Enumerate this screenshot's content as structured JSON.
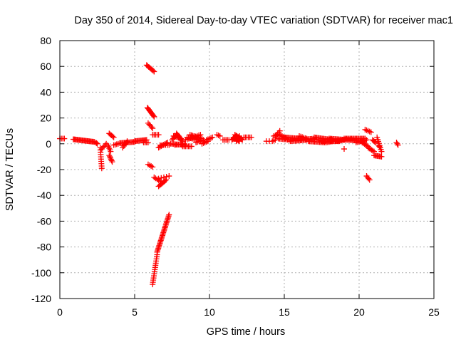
{
  "chart_data": {
    "type": "scatter",
    "title": "Day 350 of 2014, Sidereal Day-to-day VTEC variation (SDTVAR) for receiver mac1",
    "xlabel": "GPS time / hours",
    "ylabel": "SDTVAR / TECUs",
    "xlim": [
      0,
      25
    ],
    "ylim": [
      -120,
      80
    ],
    "xticks": [
      0,
      5,
      10,
      15,
      20,
      25
    ],
    "yticks": [
      -120,
      -100,
      -80,
      -60,
      -40,
      -20,
      0,
      20,
      40,
      60,
      80
    ],
    "grid": true,
    "marker": "+",
    "marker_color": "#ff0000",
    "series": [
      {
        "name": "SDTVAR",
        "segments": [
          {
            "from": [
              0.0,
              4
            ],
            "to": [
              0.3,
              4
            ],
            "n": 4
          },
          {
            "from": [
              0.9,
              3.5
            ],
            "to": [
              2.3,
              1.5
            ],
            "n": 22
          },
          {
            "from": [
              2.4,
              1
            ],
            "to": [
              2.5,
              0
            ],
            "n": 3
          },
          {
            "from": [
              2.7,
              -3
            ],
            "to": [
              2.8,
              -19
            ],
            "n": 10
          },
          {
            "from": [
              2.8,
              -4
            ],
            "to": [
              3.1,
              0
            ],
            "n": 5
          },
          {
            "from": [
              3.2,
              -1
            ],
            "to": [
              3.4,
              -6
            ],
            "n": 5
          },
          {
            "from": [
              3.3,
              -9
            ],
            "to": [
              3.5,
              -14
            ],
            "n": 6
          },
          {
            "from": [
              3.3,
              8
            ],
            "to": [
              3.6,
              5
            ],
            "n": 5
          },
          {
            "from": [
              3.6,
              -1
            ],
            "to": [
              3.9,
              0
            ],
            "n": 4
          },
          {
            "from": [
              4.0,
              0.5
            ],
            "to": [
              5.0,
              1.5
            ],
            "n": 14
          },
          {
            "from": [
              4.2,
              -3
            ],
            "to": [
              4.5,
              2
            ],
            "n": 5
          },
          {
            "from": [
              5.0,
              2
            ],
            "to": [
              5.8,
              3
            ],
            "n": 12
          },
          {
            "from": [
              5.6,
              1
            ],
            "to": [
              5.9,
              1
            ],
            "n": 4
          },
          {
            "from": [
              5.8,
              61
            ],
            "to": [
              6.3,
              56
            ],
            "n": 8
          },
          {
            "from": [
              5.85,
              28
            ],
            "to": [
              6.3,
              21
            ],
            "n": 10
          },
          {
            "from": [
              5.9,
              16
            ],
            "to": [
              6.2,
              12
            ],
            "n": 5
          },
          {
            "from": [
              5.9,
              -16
            ],
            "to": [
              6.2,
              -18
            ],
            "n": 4
          },
          {
            "from": [
              6.2,
              7
            ],
            "to": [
              6.6,
              7
            ],
            "n": 5
          },
          {
            "from": [
              6.3,
              -26
            ],
            "to": [
              6.7,
              -29
            ],
            "n": 5
          },
          {
            "from": [
              6.2,
              -109
            ],
            "to": [
              6.5,
              -86
            ],
            "n": 15
          },
          {
            "from": [
              6.5,
              -84
            ],
            "to": [
              7.3,
              -55
            ],
            "n": 30
          },
          {
            "from": [
              6.6,
              -27
            ],
            "to": [
              7.3,
              -25
            ],
            "n": 5
          },
          {
            "from": [
              6.6,
              -33
            ],
            "to": [
              7.1,
              -28
            ],
            "n": 8
          },
          {
            "from": [
              6.7,
              -1
            ],
            "to": [
              7.3,
              -1
            ],
            "n": 6
          },
          {
            "from": [
              6.6,
              -3
            ],
            "to": [
              7.2,
              1
            ],
            "n": 8
          },
          {
            "from": [
              7.4,
              0
            ],
            "to": [
              8.4,
              -1
            ],
            "n": 12
          },
          {
            "from": [
              7.5,
              3
            ],
            "to": [
              7.8,
              7
            ],
            "n": 5
          },
          {
            "from": [
              7.6,
              6
            ],
            "to": [
              8.1,
              4
            ],
            "n": 7
          },
          {
            "from": [
              7.7,
              -1
            ],
            "to": [
              8.3,
              0
            ],
            "n": 6
          },
          {
            "from": [
              7.8,
              8
            ],
            "to": [
              8.2,
              2
            ],
            "n": 8
          },
          {
            "from": [
              8.2,
              -2
            ],
            "to": [
              8.8,
              -2
            ],
            "n": 7
          },
          {
            "from": [
              8.4,
              3
            ],
            "to": [
              9.4,
              7
            ],
            "n": 10
          },
          {
            "from": [
              8.5,
              5
            ],
            "to": [
              9.6,
              2
            ],
            "n": 12
          },
          {
            "from": [
              8.7,
              7
            ],
            "to": [
              9.5,
              4
            ],
            "n": 10
          },
          {
            "from": [
              9.1,
              1
            ],
            "to": [
              9.6,
              3
            ],
            "n": 6
          },
          {
            "from": [
              9.5,
              0
            ],
            "to": [
              9.9,
              2
            ],
            "n": 5
          },
          {
            "from": [
              9.8,
              3
            ],
            "to": [
              10.2,
              5
            ],
            "n": 5
          },
          {
            "from": [
              10.5,
              7
            ],
            "to": [
              10.7,
              6
            ],
            "n": 3
          },
          {
            "from": [
              10.9,
              3
            ],
            "to": [
              11.3,
              3
            ],
            "n": 5
          },
          {
            "from": [
              11.5,
              3
            ],
            "to": [
              11.8,
              6
            ],
            "n": 6
          },
          {
            "from": [
              11.6,
              5
            ],
            "to": [
              12.0,
              2
            ],
            "n": 7
          },
          {
            "from": [
              11.7,
              7
            ],
            "to": [
              12.2,
              3
            ],
            "n": 8
          },
          {
            "from": [
              11.8,
              2
            ],
            "to": [
              12.0,
              6
            ],
            "n": 5
          },
          {
            "from": [
              12.3,
              5
            ],
            "to": [
              12.8,
              5
            ],
            "n": 6
          },
          {
            "from": [
              13.8,
              2
            ],
            "to": [
              14.0,
              2
            ],
            "n": 2
          },
          {
            "from": [
              14.2,
              2
            ],
            "to": [
              14.4,
              3
            ],
            "n": 3
          },
          {
            "from": [
              14.3,
              6
            ],
            "to": [
              14.5,
              7
            ],
            "n": 3
          },
          {
            "from": [
              14.4,
              5
            ],
            "to": [
              14.7,
              10
            ],
            "n": 5
          },
          {
            "from": [
              14.6,
              4
            ],
            "to": [
              15.4,
              3
            ],
            "n": 10
          },
          {
            "from": [
              14.7,
              7
            ],
            "to": [
              15.1,
              4
            ],
            "n": 6
          },
          {
            "from": [
              15.0,
              5
            ],
            "to": [
              16.0,
              4
            ],
            "n": 14
          },
          {
            "from": [
              15.4,
              2
            ],
            "to": [
              16.5,
              3
            ],
            "n": 14
          },
          {
            "from": [
              15.9,
              3
            ],
            "to": [
              17.0,
              4
            ],
            "n": 14
          },
          {
            "from": [
              16.0,
              6
            ],
            "to": [
              16.5,
              4
            ],
            "n": 6
          },
          {
            "from": [
              16.6,
              2
            ],
            "to": [
              17.7,
              1
            ],
            "n": 14
          },
          {
            "from": [
              17.0,
              5
            ],
            "to": [
              18.2,
              3
            ],
            "n": 16
          },
          {
            "from": [
              17.5,
              2
            ],
            "to": [
              18.7,
              2
            ],
            "n": 16
          },
          {
            "from": [
              17.8,
              1
            ],
            "to": [
              18.3,
              2
            ],
            "n": 6
          },
          {
            "from": [
              18.0,
              4
            ],
            "to": [
              19.2,
              3
            ],
            "n": 16
          },
          {
            "from": [
              18.4,
              2
            ],
            "to": [
              19.0,
              3
            ],
            "n": 8
          },
          {
            "from": [
              19.0,
              -4
            ],
            "to": [
              19.0,
              -4
            ],
            "n": 1
          },
          {
            "from": [
              19.0,
              4
            ],
            "to": [
              20.4,
              4
            ],
            "n": 18
          },
          {
            "from": [
              19.3,
              3
            ],
            "to": [
              20.3,
              2
            ],
            "n": 14
          },
          {
            "from": [
              19.8,
              1
            ],
            "to": [
              20.5,
              3
            ],
            "n": 8
          },
          {
            "from": [
              20.2,
              1
            ],
            "to": [
              20.6,
              -2
            ],
            "n": 6
          },
          {
            "from": [
              20.4,
              11
            ],
            "to": [
              20.8,
              9
            ],
            "n": 5
          },
          {
            "from": [
              20.5,
              -25
            ],
            "to": [
              20.7,
              -28
            ],
            "n": 4
          },
          {
            "from": [
              20.6,
              -3
            ],
            "to": [
              21.0,
              -6
            ],
            "n": 6
          },
          {
            "from": [
              20.9,
              3
            ],
            "to": [
              21.1,
              1
            ],
            "n": 4
          },
          {
            "from": [
              21.0,
              -9
            ],
            "to": [
              21.5,
              -10
            ],
            "n": 8
          },
          {
            "from": [
              21.2,
              5
            ],
            "to": [
              21.5,
              -6
            ],
            "n": 8
          },
          {
            "from": [
              21.3,
              -1
            ],
            "to": [
              21.4,
              -3
            ],
            "n": 3
          },
          {
            "from": [
              22.5,
              1
            ],
            "to": [
              22.6,
              -1
            ],
            "n": 3
          }
        ]
      }
    ]
  }
}
